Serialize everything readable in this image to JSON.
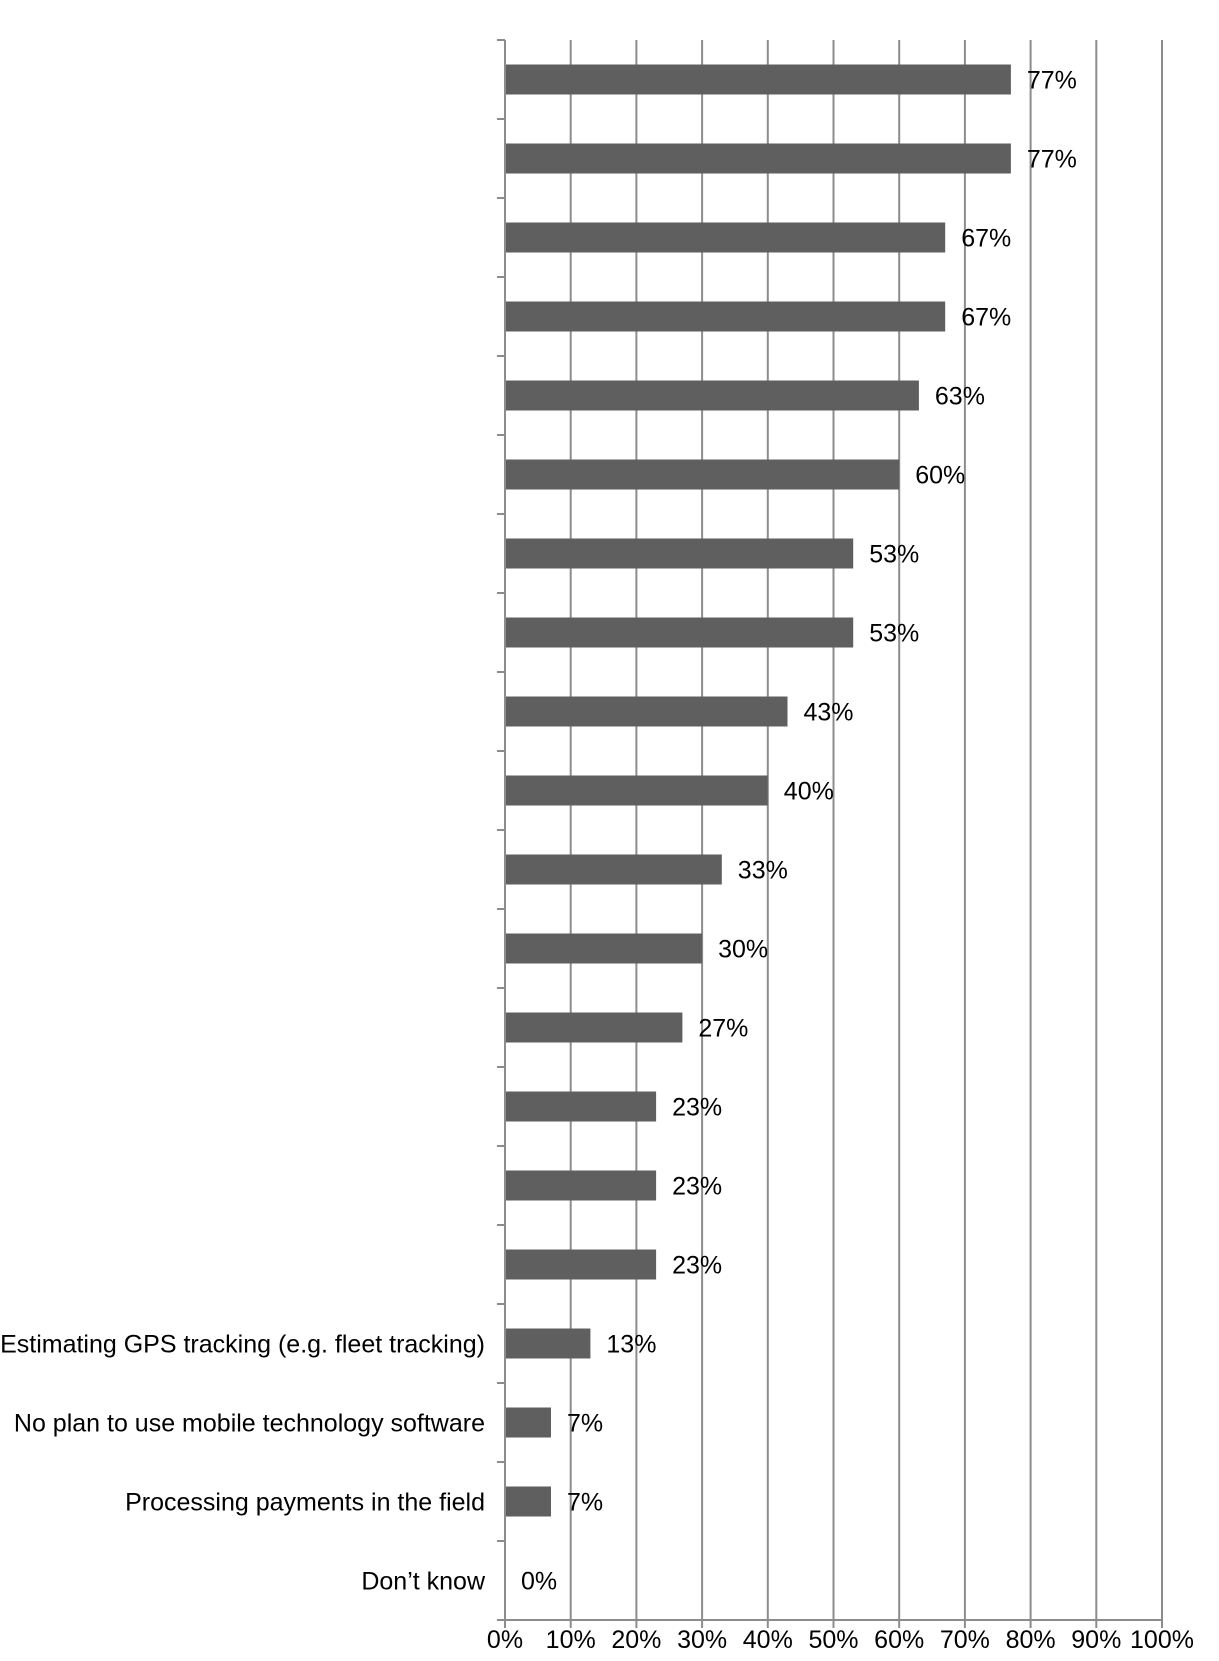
{
  "chart_data": {
    "type": "bar",
    "orientation": "horizontal",
    "categories": [
      "",
      "",
      "",
      "",
      "",
      "",
      "",
      "",
      "",
      "",
      "",
      "",
      "",
      "",
      "",
      "",
      "Estimating GPS tracking (e.g. fleet tracking)",
      "No plan to use mobile technology software",
      "Processing payments in the field",
      "Don’t know"
    ],
    "values": [
      77,
      77,
      67,
      67,
      63,
      60,
      53,
      53,
      43,
      40,
      33,
      30,
      27,
      23,
      23,
      23,
      13,
      7,
      7,
      0
    ],
    "data_labels": [
      "77%",
      "77%",
      "67%",
      "67%",
      "63%",
      "60%",
      "53%",
      "53%",
      "43%",
      "40%",
      "33%",
      "30%",
      "27%",
      "23%",
      "23%",
      "23%",
      "13%",
      "7%",
      "7%",
      "0%"
    ],
    "x_ticks": [
      "0%",
      "10%",
      "20%",
      "30%",
      "40%",
      "50%",
      "60%",
      "70%",
      "80%",
      "90%",
      "100%"
    ],
    "xlim": [
      0,
      100
    ],
    "title": "",
    "xlabel": "",
    "ylabel": "",
    "grid": "vertical",
    "legend": "none",
    "bar_color": "#5f5f5f",
    "grid_color": "#8c8c8c"
  }
}
